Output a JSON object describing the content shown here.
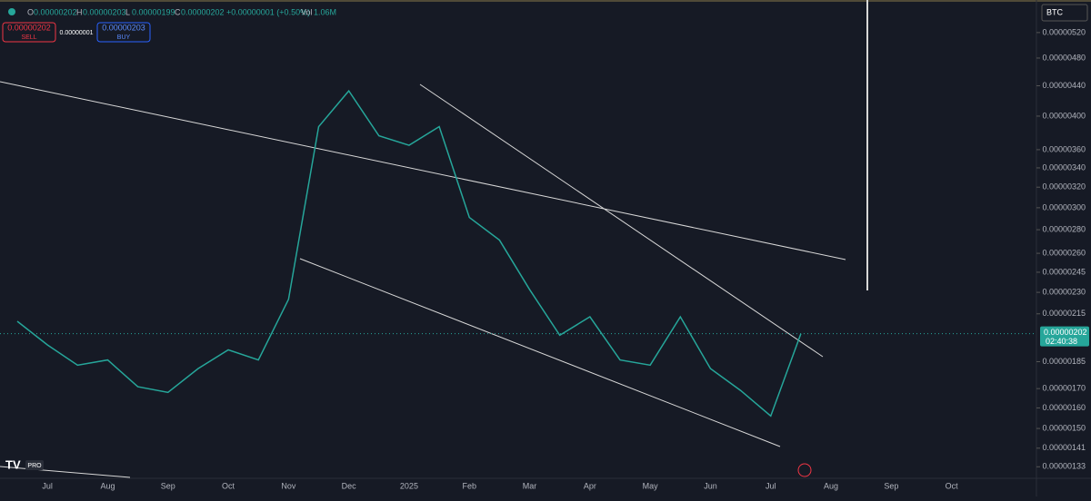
{
  "header": {
    "ohlc": [
      {
        "label": "O",
        "value": "0.00000202"
      },
      {
        "label": "H",
        "value": "0.00000203"
      },
      {
        "label": "L",
        "value": "0.00000199"
      },
      {
        "label": "C",
        "value": "0.00000202"
      }
    ],
    "change": "+0.00000001 (+0.50%)",
    "volume_label": "Vol",
    "volume": "1.06M"
  },
  "trade": {
    "sell_price": "0.00000202",
    "sell": "SELL",
    "spread": "0.00000001",
    "buy_price": "0.00000203",
    "buy": "BUY"
  },
  "currency": "BTC",
  "logo": "PRO",
  "chart_data": {
    "type": "line",
    "color": "#26a69a",
    "log_scale": true,
    "categories": [
      null,
      "Jul",
      null,
      "Aug",
      null,
      "Sep",
      null,
      "Oct",
      null,
      "Nov",
      null,
      "Dec",
      null,
      "2025",
      null,
      "Feb",
      null,
      "Mar",
      null,
      "Apr",
      null,
      "May",
      null,
      "Jun",
      null,
      "Jul",
      null,
      "Aug",
      null,
      "Sep",
      null,
      "Oct"
    ],
    "values": [
      2.1e-06,
      1.95e-06,
      1.83e-06,
      1.86e-06,
      1.71e-06,
      1.68e-06,
      1.81e-06,
      1.92e-06,
      1.86e-06,
      2.25e-06,
      3.87e-06,
      4.33e-06,
      3.76e-06,
      3.65e-06,
      3.87e-06,
      2.91e-06,
      2.71e-06,
      2.32e-06,
      2.01e-06,
      2.13e-06,
      1.86e-06,
      1.83e-06,
      2.13e-06,
      1.81e-06,
      1.69e-06,
      1.56e-06,
      2.02e-06,
      null,
      null,
      null,
      null,
      null
    ],
    "ylim": [
      1.29e-06,
      5.76e-06
    ],
    "yticks": [
      {
        "value": 5.2e-06,
        "label": "0.00000520"
      },
      {
        "value": 4.8e-06,
        "label": "0.00000480"
      },
      {
        "value": 4.4e-06,
        "label": "0.00000440"
      },
      {
        "value": 4e-06,
        "label": "0.00000400"
      },
      {
        "value": 3.6e-06,
        "label": "0.00000360"
      },
      {
        "value": 3.4e-06,
        "label": "0.00000340"
      },
      {
        "value": 3.2e-06,
        "label": "0.00000320"
      },
      {
        "value": 3e-06,
        "label": "0.00000300"
      },
      {
        "value": 2.8e-06,
        "label": "0.00000280"
      },
      {
        "value": 2.6e-06,
        "label": "0.00000260"
      },
      {
        "value": 2.45e-06,
        "label": "0.00000245"
      },
      {
        "value": 2.3e-06,
        "label": "0.00000230"
      },
      {
        "value": 2.15e-06,
        "label": "0.00000215"
      },
      {
        "value": 1.85e-06,
        "label": "0.00000185"
      },
      {
        "value": 1.7e-06,
        "label": "0.00000170"
      },
      {
        "value": 1.6e-06,
        "label": "0.00000160"
      },
      {
        "value": 1.5e-06,
        "label": "0.00000150"
      },
      {
        "value": 1.41e-06,
        "label": "0.00000141"
      },
      {
        "value": 1.33e-06,
        "label": "0.00000133"
      }
    ],
    "last_price": {
      "value": 2.02e-06,
      "label": "0.00000202"
    },
    "countdown": "02:40:38"
  }
}
